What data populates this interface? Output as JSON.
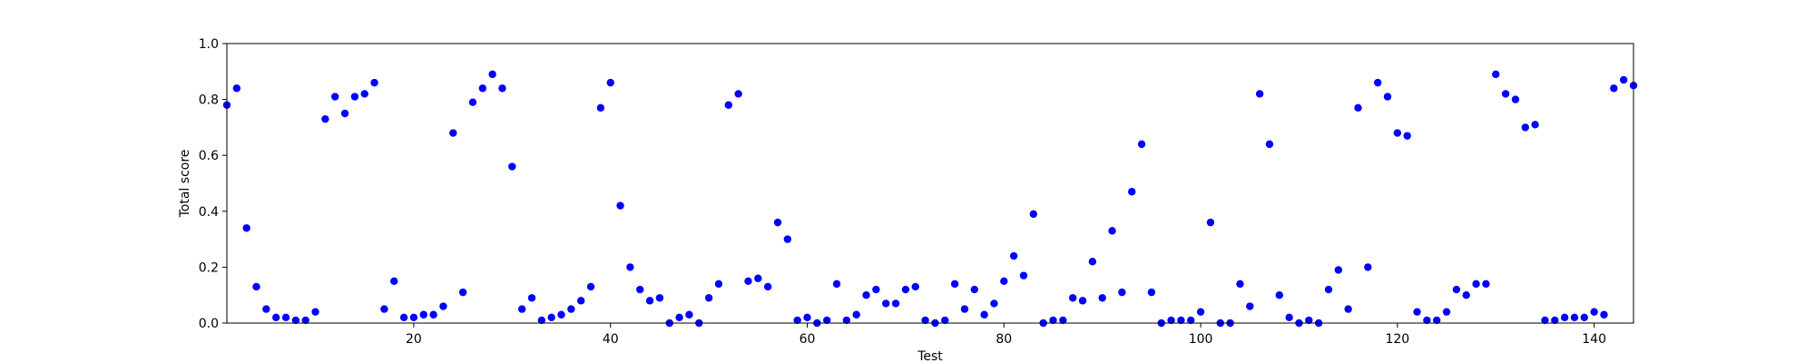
{
  "chart_data": {
    "type": "scatter",
    "title": "",
    "xlabel": "Test",
    "ylabel": "Total score",
    "xlim": [
      1,
      144
    ],
    "ylim": [
      0.0,
      1.0
    ],
    "grid": false,
    "marker_color": "#0000ff",
    "x_ticks": [
      20,
      40,
      60,
      80,
      100,
      120,
      140
    ],
    "x_tick_labels": [
      "20",
      "40",
      "60",
      "80",
      "100",
      "120",
      "140"
    ],
    "y_ticks": [
      0.0,
      0.2,
      0.4,
      0.6,
      0.8,
      1.0
    ],
    "y_tick_labels": [
      "0.0",
      "0.2",
      "0.4",
      "0.6",
      "0.8",
      "1.0"
    ],
    "series": [
      {
        "x": [
          1,
          2,
          3,
          4,
          5,
          6,
          7,
          8,
          9,
          10,
          11,
          12,
          13,
          14,
          15,
          16,
          17,
          18,
          19,
          20,
          21,
          22,
          23,
          24,
          25,
          26,
          27,
          28,
          29,
          30,
          31,
          32,
          33,
          34,
          35,
          36,
          37,
          38,
          39,
          40,
          41,
          42,
          43,
          44,
          45,
          46,
          47,
          48,
          49,
          50,
          51,
          52,
          53,
          54,
          55,
          56,
          57,
          58,
          59,
          60,
          61,
          62,
          63,
          64,
          65,
          66,
          67,
          68,
          69,
          70,
          71,
          72,
          73,
          74,
          75,
          76,
          77,
          78,
          79,
          80,
          81,
          82,
          83,
          84,
          85,
          86,
          87,
          88,
          89,
          90,
          91,
          92,
          93,
          94,
          95,
          96,
          97,
          98,
          99,
          100,
          101,
          102,
          103,
          104,
          105,
          106,
          107,
          108,
          109,
          110,
          111,
          112,
          113,
          114,
          115,
          116,
          117,
          118,
          119,
          120,
          121,
          122,
          123,
          124,
          125,
          126,
          127,
          128,
          129,
          130,
          131,
          132,
          133,
          134,
          135,
          136,
          137,
          138,
          139,
          140,
          141,
          142,
          143,
          144
        ],
        "y": [
          0.78,
          0.84,
          0.34,
          0.13,
          0.05,
          0.02,
          0.02,
          0.01,
          0.01,
          0.04,
          0.73,
          0.81,
          0.75,
          0.81,
          0.82,
          0.86,
          0.05,
          0.15,
          0.02,
          0.02,
          0.03,
          0.03,
          0.06,
          0.68,
          0.11,
          0.79,
          0.84,
          0.89,
          0.84,
          0.56,
          0.05,
          0.09,
          0.01,
          0.02,
          0.03,
          0.05,
          0.08,
          0.13,
          0.77,
          0.86,
          0.42,
          0.2,
          0.12,
          0.08,
          0.09,
          0.0,
          0.02,
          0.03,
          0.0,
          0.09,
          0.14,
          0.78,
          0.82,
          0.15,
          0.16,
          0.13,
          0.36,
          0.3,
          0.01,
          0.02,
          0.0,
          0.01,
          0.14,
          0.01,
          0.03,
          0.1,
          0.12,
          0.07,
          0.07,
          0.12,
          0.13,
          0.01,
          0.0,
          0.01,
          0.14,
          0.05,
          0.12,
          0.03,
          0.07,
          0.15,
          0.24,
          0.17,
          0.39,
          0.0,
          0.01,
          0.01,
          0.09,
          0.08,
          0.22,
          0.09,
          0.33,
          0.11,
          0.47,
          0.64,
          0.11,
          0.0,
          0.01,
          0.01,
          0.01,
          0.04,
          0.36,
          0.0,
          0.0,
          0.14,
          0.06,
          0.82,
          0.64,
          0.1,
          0.02,
          0.0,
          0.01,
          0.0,
          0.12,
          0.19,
          0.05,
          0.77,
          0.2,
          0.86,
          0.81,
          0.68,
          0.67,
          0.04,
          0.01,
          0.01,
          0.04,
          0.12,
          0.1,
          0.14,
          0.14,
          0.89,
          0.82,
          0.8,
          0.7,
          0.71,
          0.01,
          0.01,
          0.02,
          0.02,
          0.02,
          0.04,
          0.03,
          0.84,
          0.87,
          0.85
        ]
      }
    ]
  }
}
